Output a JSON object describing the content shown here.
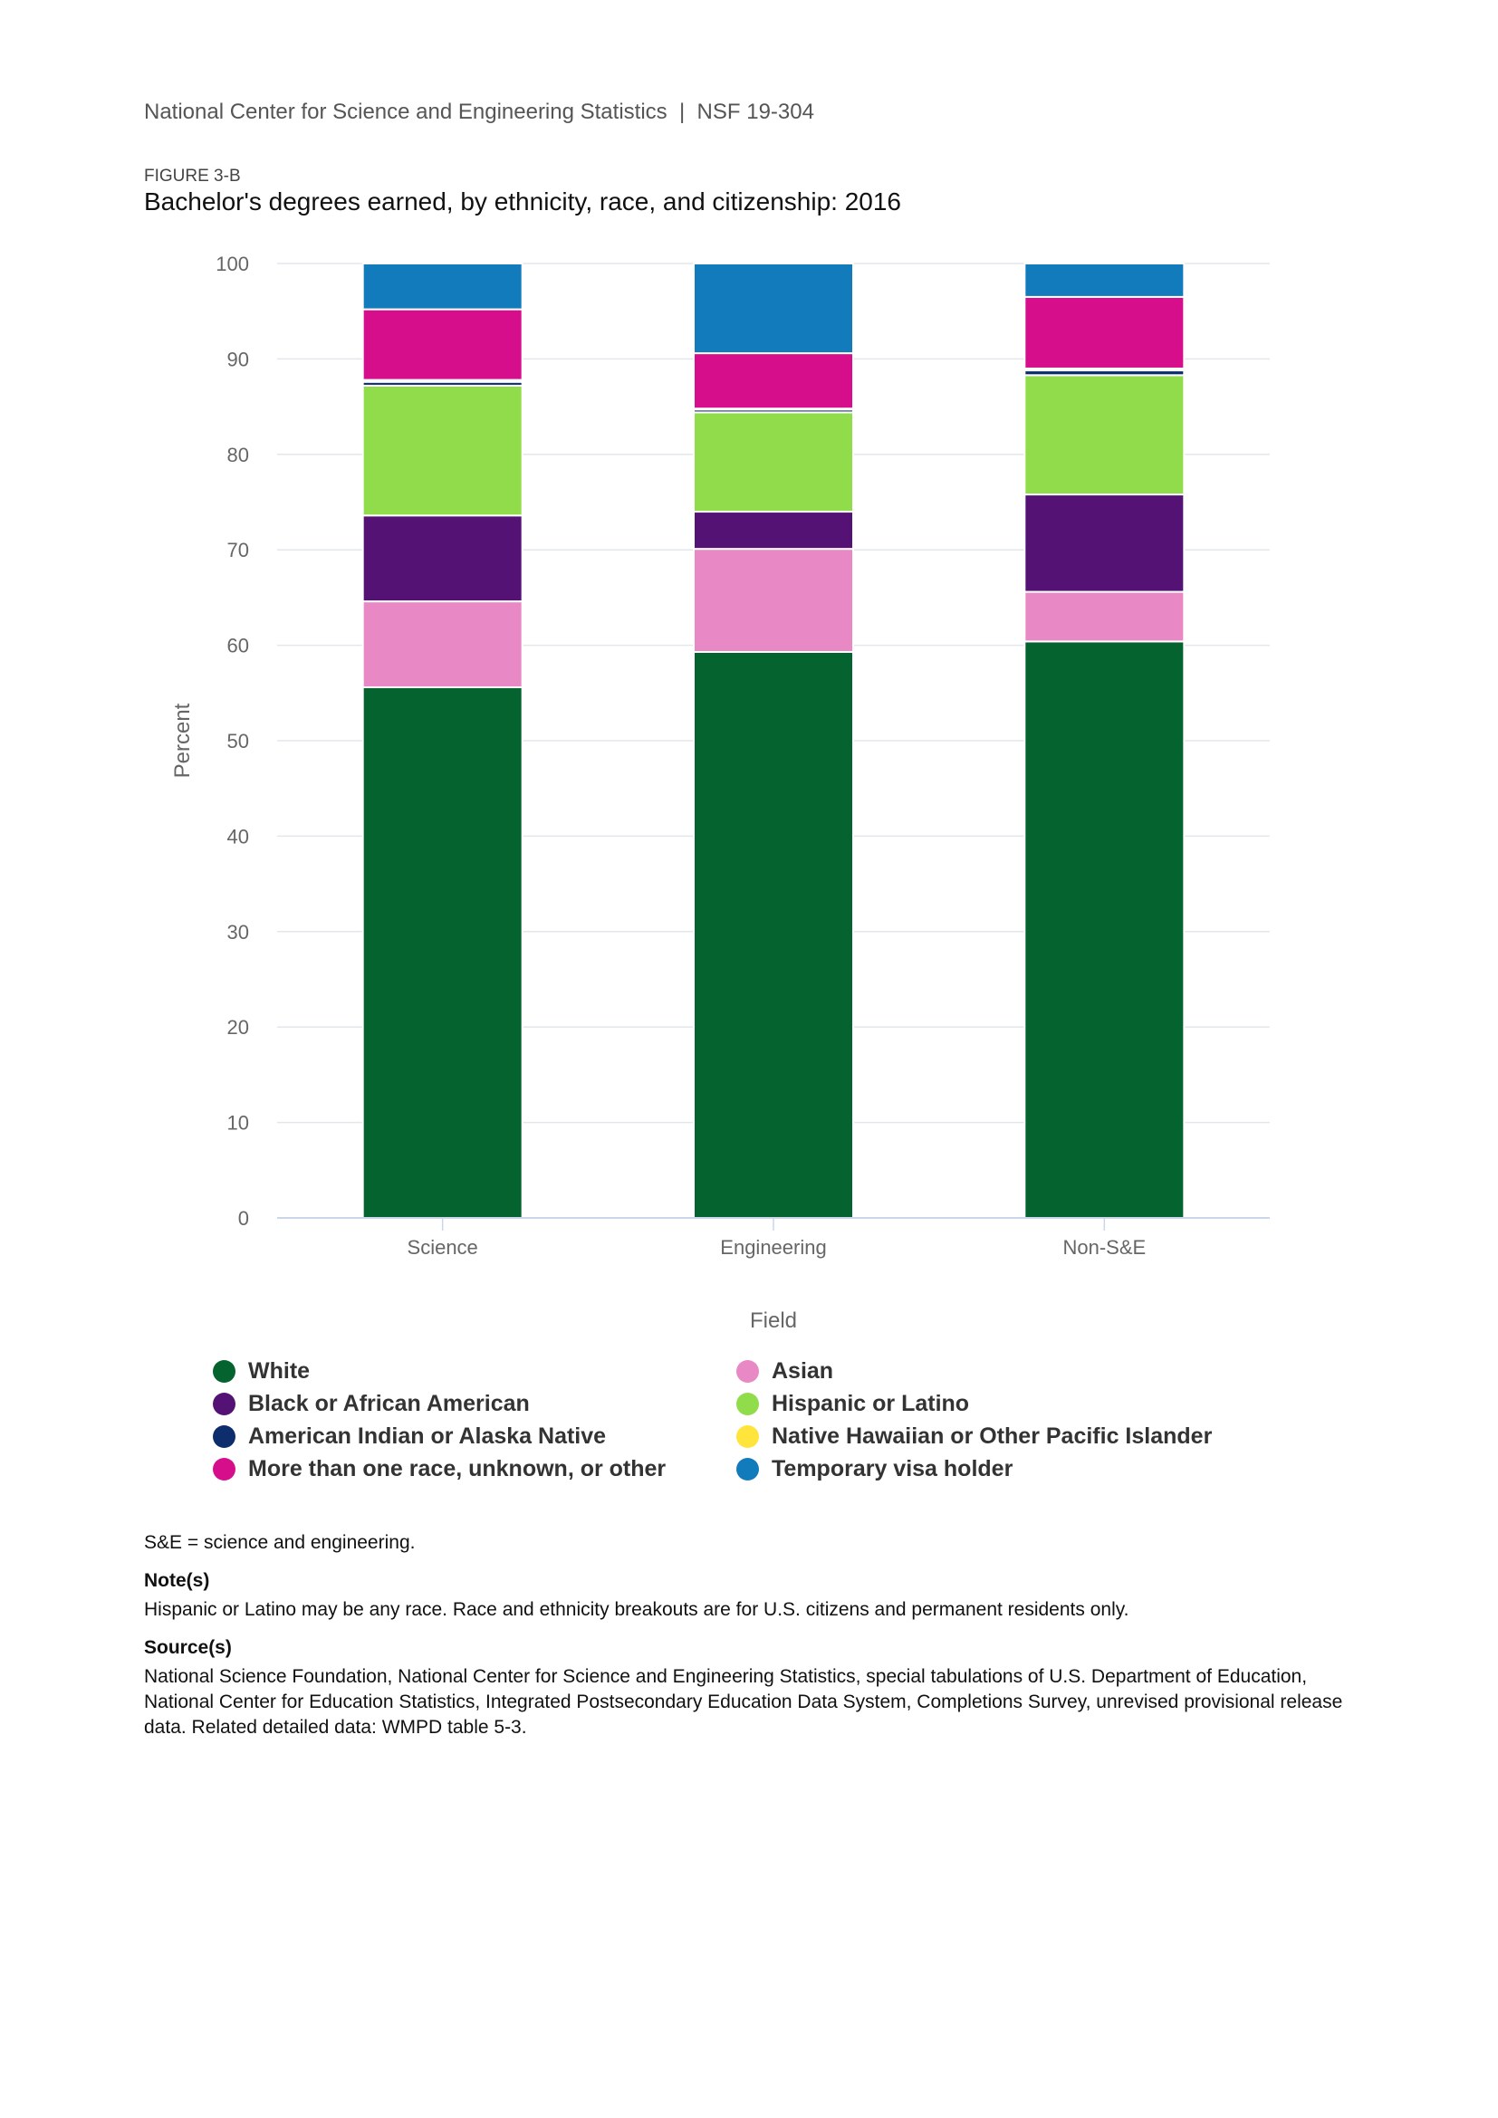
{
  "header": {
    "text": "National Center for Science and Engineering Statistics  |  NSF 19-304"
  },
  "figure": {
    "label": "FIGURE 3-B",
    "title": "Bachelor's degrees earned, by ethnicity, race, and citizenship: 2016"
  },
  "chart_data": {
    "type": "bar",
    "stacked": true,
    "categories": [
      "Science",
      "Engineering",
      "Non-S&E"
    ],
    "xlabel": "Field",
    "ylabel": "Percent",
    "ylim": [
      0,
      100
    ],
    "yticks": [
      "0",
      "10",
      "20",
      "30",
      "40",
      "50",
      "60",
      "70",
      "80",
      "90",
      "100"
    ],
    "grid": true,
    "legend_position": "bottom",
    "series": [
      {
        "name": "White",
        "color": "#04632f",
        "values": [
          55.6,
          59.3,
          60.4
        ]
      },
      {
        "name": "Asian",
        "color": "#e889c5",
        "values": [
          9.0,
          10.8,
          5.2
        ]
      },
      {
        "name": "Black or African American",
        "color": "#541274",
        "values": [
          9.0,
          3.9,
          10.2
        ]
      },
      {
        "name": "Hispanic or Latino",
        "color": "#91dc4b",
        "values": [
          13.6,
          10.4,
          12.5
        ]
      },
      {
        "name": "American Indian or Alaska Native",
        "color": "#0d2d6c",
        "values": [
          0.4,
          0.3,
          0.5
        ]
      },
      {
        "name": "Native Hawaiian or Other Pacific Islander",
        "color": "#ffe53b",
        "values": [
          0.2,
          0.1,
          0.2
        ]
      },
      {
        "name": "More than one race, unknown, or other",
        "color": "#d60e8c",
        "values": [
          7.4,
          5.8,
          7.5
        ]
      },
      {
        "name": "Temporary visa holder",
        "color": "#127bbc",
        "values": [
          4.8,
          9.4,
          3.5
        ]
      }
    ]
  },
  "legend_order": [
    {
      "name": "White",
      "color": "#04632f"
    },
    {
      "name": "Asian",
      "color": "#e889c5"
    },
    {
      "name": "Black or African American",
      "color": "#541274"
    },
    {
      "name": "Hispanic or Latino",
      "color": "#91dc4b"
    },
    {
      "name": "American Indian or Alaska Native",
      "color": "#0d2d6c"
    },
    {
      "name": "Native Hawaiian or Other Pacific Islander",
      "color": "#ffe53b"
    },
    {
      "name": "More than one race, unknown, or other",
      "color": "#d60e8c"
    },
    {
      "name": "Temporary visa holder",
      "color": "#127bbc"
    }
  ],
  "notes": {
    "abbrev": "S&E = science and engineering.",
    "note_heading": "Note(s)",
    "note_text": "Hispanic or Latino may be any race. Race and ethnicity breakouts are for U.S. citizens and permanent residents only.",
    "source_heading": "Source(s)",
    "source_text": "National Science Foundation, National Center for Science and Engineering Statistics, special tabulations of U.S. Department of Education, National Center for Education Statistics, Integrated Postsecondary Education Data System, Completions Survey, unrevised provisional release data. Related detailed data: WMPD table 5-3."
  }
}
